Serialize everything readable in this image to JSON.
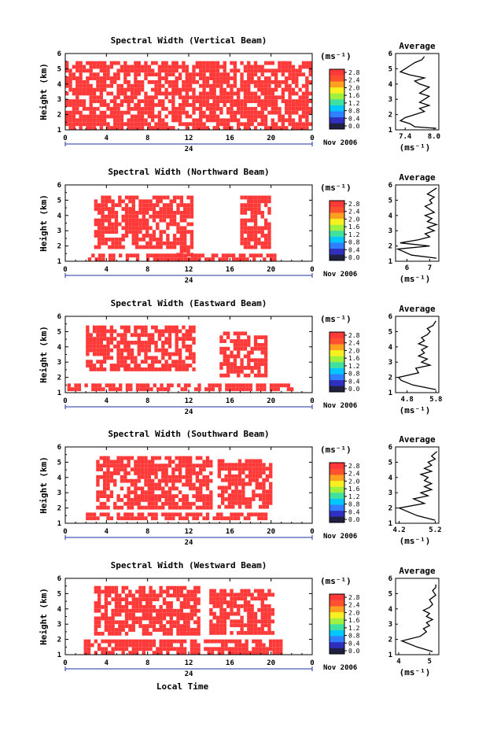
{
  "figure": {
    "date_label": "Nov 2006",
    "xlabel": "Local Time",
    "ylabel": "Height (km)",
    "time_ticks": [
      "0",
      "4",
      "8",
      "12",
      "16",
      "20",
      "0"
    ],
    "day_label": "24",
    "height_ticks": [
      "1",
      "2",
      "3",
      "4",
      "5",
      "6"
    ],
    "unit_label": "(ms⁻¹)",
    "avg_title": "Average",
    "avg_xlabel": "(ms⁻¹)",
    "colorbar": {
      "ticks": [
        "0.0",
        "0.4",
        "0.8",
        "1.2",
        "1.6",
        "2.0",
        "2.4",
        "2.8"
      ],
      "colors": [
        "#202040",
        "#3030c0",
        "#2f7fff",
        "#00c8ff",
        "#40e0a0",
        "#a0f040",
        "#f8f020",
        "#ffa020",
        "#ff5030",
        "#ff3838"
      ]
    },
    "data_color": "#ff3838"
  },
  "chart_data": [
    {
      "type": "heatmap",
      "title": "Spectral Width (Vertical Beam)",
      "xlabel": "",
      "ylabel": "Height (km)",
      "x_range_hours": [
        0,
        24
      ],
      "y_range_km": [
        1,
        6
      ],
      "z_range": [
        0.0,
        2.8
      ],
      "coverage": [
        [
          0,
          24,
          1.1,
          5.5
        ]
      ],
      "dominant_value": "≥ 2.8",
      "average_profile": {
        "title": "Average",
        "xlim": [
          7.2,
          8.1
        ],
        "x_ticks": [
          "7.4",
          "8.0"
        ],
        "y_range_km": [
          1,
          6
        ],
        "x": [
          8.05,
          7.6,
          7.5,
          7.3,
          7.4,
          7.6,
          7.8,
          7.7,
          7.9,
          7.7,
          7.8,
          7.9,
          7.7,
          7.8,
          7.9,
          7.7,
          7.6,
          7.8,
          7.5,
          7.3,
          7.4,
          7.5,
          7.6,
          7.75,
          7.8
        ],
        "y": [
          1.1,
          1.2,
          1.4,
          1.6,
          1.8,
          2.0,
          2.2,
          2.4,
          2.6,
          2.8,
          3.0,
          3.2,
          3.4,
          3.6,
          3.8,
          4.0,
          4.2,
          4.4,
          4.6,
          4.8,
          5.0,
          5.2,
          5.4,
          5.6,
          5.8
        ]
      }
    },
    {
      "type": "heatmap",
      "title": "Spectral Width (Northward Beam)",
      "xlabel": "",
      "ylabel": "Height (km)",
      "x_range_hours": [
        0,
        24
      ],
      "y_range_km": [
        1,
        6
      ],
      "z_range": [
        0.0,
        2.8
      ],
      "coverage": [
        [
          2.8,
          10.8,
          2.0,
          5.3
        ],
        [
          10.8,
          12.4,
          1.3,
          5.3
        ],
        [
          17.0,
          20.0,
          2.0,
          5.3
        ],
        [
          2.2,
          20.5,
          1.2,
          1.5
        ]
      ],
      "dominant_value": "≥ 2.8",
      "average_profile": {
        "title": "Average",
        "xlim": [
          5.5,
          7.4
        ],
        "x_ticks": [
          "6",
          "7"
        ],
        "y_range_km": [
          1,
          6
        ],
        "x": [
          7.3,
          6.2,
          5.6,
          7.0,
          5.7,
          6.5,
          7.0,
          6.8,
          7.2,
          6.9,
          7.3,
          6.9,
          7.1,
          6.8,
          7.2,
          7.0,
          6.8,
          7.1,
          7.0,
          7.2,
          6.9,
          7.1,
          7.3
        ],
        "y": [
          1.2,
          1.4,
          1.8,
          2.0,
          2.2,
          2.4,
          2.6,
          2.8,
          3.0,
          3.2,
          3.4,
          3.6,
          3.8,
          4.0,
          4.2,
          4.4,
          4.6,
          4.8,
          5.0,
          5.2,
          5.4,
          5.6,
          5.8
        ]
      }
    },
    {
      "type": "heatmap",
      "title": "Spectral Width (Eastward Beam)",
      "xlabel": "",
      "ylabel": "Height (km)",
      "x_range_hours": [
        0,
        24
      ],
      "y_range_km": [
        1,
        6
      ],
      "z_range": [
        0.0,
        2.8
      ],
      "coverage": [
        [
          2.0,
          12.5,
          2.5,
          5.4
        ],
        [
          15.0,
          19.5,
          2.0,
          5.0
        ],
        [
          0.2,
          22.0,
          1.2,
          1.6
        ]
      ],
      "dominant_value": "≥ 2.8",
      "average_profile": {
        "title": "Average",
        "xlim": [
          4.4,
          5.9
        ],
        "x_ticks": [
          "4.8",
          "5.8"
        ],
        "y_range_km": [
          1,
          6
        ],
        "x": [
          5.8,
          5.0,
          4.6,
          4.5,
          5.2,
          5.1,
          5.6,
          5.3,
          5.5,
          5.2,
          5.4,
          5.3,
          5.5,
          5.2,
          5.4,
          5.3,
          5.5,
          5.6,
          5.5,
          5.7,
          5.8
        ],
        "y": [
          1.2,
          1.5,
          1.8,
          2.0,
          2.3,
          2.6,
          2.8,
          3.0,
          3.2,
          3.4,
          3.6,
          3.8,
          4.0,
          4.2,
          4.4,
          4.6,
          4.8,
          5.0,
          5.2,
          5.4,
          5.7
        ]
      }
    },
    {
      "type": "heatmap",
      "title": "Spectral Width (Southward Beam)",
      "xlabel": "",
      "ylabel": "Height (km)",
      "x_range_hours": [
        0,
        24
      ],
      "y_range_km": [
        1,
        6
      ],
      "z_range": [
        0.0,
        2.8
      ],
      "coverage": [
        [
          3.0,
          14.3,
          2.0,
          5.4
        ],
        [
          14.8,
          20.0,
          2.0,
          5.2
        ],
        [
          2.0,
          20.0,
          1.2,
          1.7
        ]
      ],
      "dominant_value": "≥ 2.8",
      "average_profile": {
        "title": "Average",
        "xlim": [
          4.1,
          5.3
        ],
        "x_ticks": [
          "4.2",
          "5.2"
        ],
        "y_range_km": [
          1,
          6
        ],
        "x": [
          5.2,
          4.7,
          4.2,
          4.9,
          4.6,
          5.0,
          4.8,
          5.1,
          4.9,
          5.1,
          4.9,
          5.0,
          4.8,
          5.1,
          4.9,
          5.1,
          5.0,
          5.2,
          5.1,
          5.25
        ],
        "y": [
          1.2,
          1.5,
          2.0,
          2.3,
          2.6,
          2.8,
          3.0,
          3.2,
          3.4,
          3.6,
          3.8,
          4.0,
          4.2,
          4.4,
          4.6,
          4.8,
          5.0,
          5.2,
          5.4,
          5.7
        ]
      }
    },
    {
      "type": "heatmap",
      "title": "Spectral Width (Westward Beam)",
      "xlabel": "Local Time",
      "ylabel": "Height (km)",
      "x_range_hours": [
        0,
        24
      ],
      "y_range_km": [
        1,
        6
      ],
      "z_range": [
        0.0,
        2.8
      ],
      "coverage": [
        [
          2.8,
          13.0,
          2.3,
          5.5
        ],
        [
          14.0,
          20.2,
          2.3,
          5.3
        ],
        [
          1.8,
          21.0,
          1.2,
          2.0
        ]
      ],
      "dominant_value": "≥ 2.8",
      "average_profile": {
        "title": "Average",
        "xlim": [
          3.9,
          5.3
        ],
        "x_ticks": [
          "4",
          "5"
        ],
        "y_range_km": [
          1,
          6
        ],
        "x": [
          5.1,
          4.6,
          4.1,
          4.7,
          4.9,
          4.8,
          5.0,
          4.9,
          5.1,
          4.9,
          5.0,
          4.8,
          5.0,
          5.1,
          5.0,
          5.2,
          5.1,
          5.2,
          5.2
        ],
        "y": [
          1.2,
          1.5,
          1.9,
          2.2,
          2.5,
          2.7,
          2.9,
          3.1,
          3.3,
          3.5,
          3.7,
          3.9,
          4.1,
          4.3,
          4.6,
          4.9,
          5.2,
          5.4,
          5.6
        ]
      }
    }
  ]
}
